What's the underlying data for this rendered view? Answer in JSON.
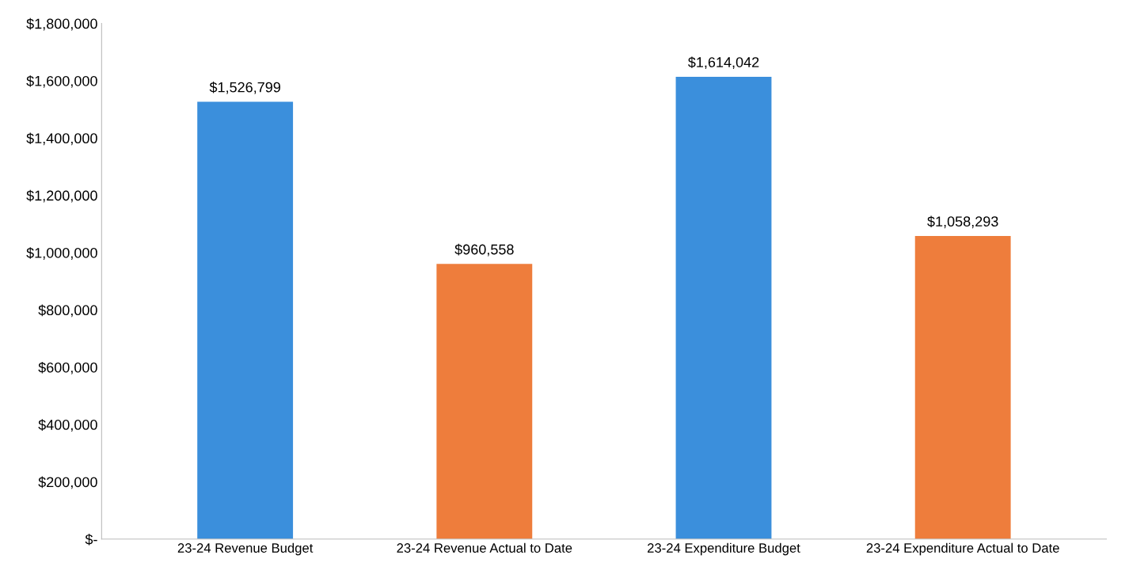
{
  "chart_data": {
    "type": "bar",
    "categories": [
      "23-24 Revenue Budget",
      "23-24 Revenue Actual to Date",
      "23-24 Expenditure Budget",
      "23-24 Expenditure Actual to Date"
    ],
    "values": [
      1526799,
      960558,
      1614042,
      1058293
    ],
    "value_labels": [
      "$1,526,799",
      "$960,558",
      "$1,614,042",
      "$1,058,293"
    ],
    "colors": [
      "#3b8fdc",
      "#ee7d3c",
      "#3b8fdc",
      "#ee7d3c"
    ],
    "ylim": [
      0,
      1800000
    ],
    "yticks": [
      {
        "value": 0,
        "label": "$-"
      },
      {
        "value": 200000,
        "label": "$200,000"
      },
      {
        "value": 400000,
        "label": "$400,000"
      },
      {
        "value": 600000,
        "label": "$600,000"
      },
      {
        "value": 800000,
        "label": "$800,000"
      },
      {
        "value": 1000000,
        "label": "$1,000,000"
      },
      {
        "value": 1200000,
        "label": "$1,200,000"
      },
      {
        "value": 1400000,
        "label": "$1,400,000"
      },
      {
        "value": 1600000,
        "label": "$1,600,000"
      },
      {
        "value": 1800000,
        "label": "$1,800,000"
      }
    ],
    "grid": false
  }
}
